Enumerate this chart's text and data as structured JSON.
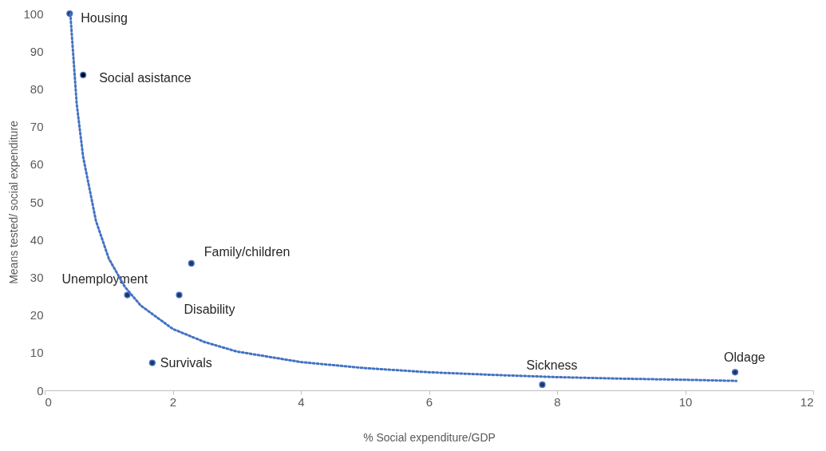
{
  "chart_data": {
    "type": "scatter",
    "xlabel": "% Social expenditure/GDP",
    "ylabel": "Means tested/ social expenditure",
    "xlim": [
      0,
      12
    ],
    "ylim": [
      0,
      100
    ],
    "xticks": [
      0,
      2,
      4,
      6,
      8,
      10,
      12
    ],
    "yticks": [
      0,
      10,
      20,
      30,
      40,
      50,
      60,
      70,
      80,
      90,
      100
    ],
    "grid": false,
    "marker": "circle",
    "series": [
      {
        "name": "Housing",
        "color": "#1f3864",
        "x": [
          0.39
        ],
        "values": [
          100
        ]
      },
      {
        "name": "Social asistance",
        "color": "#000000",
        "x": [
          0.6
        ],
        "values": [
          83.7
        ]
      },
      {
        "name": "Family/children",
        "color": "#1f3864",
        "x": [
          2.29
        ],
        "values": [
          33.7
        ]
      },
      {
        "name": "Unemployment",
        "color": "#1f3864",
        "x": [
          1.29
        ],
        "values": [
          25.3
        ]
      },
      {
        "name": "Disability",
        "color": "#1f3864",
        "x": [
          2.1
        ],
        "values": [
          25.3
        ]
      },
      {
        "name": "Survivals",
        "color": "#1f3864",
        "x": [
          1.68
        ],
        "values": [
          7.3
        ]
      },
      {
        "name": "Sickness",
        "color": "#1f3864",
        "x": [
          7.77
        ],
        "values": [
          1.5
        ]
      },
      {
        "name": "Oldage",
        "color": "#1f3864",
        "x": [
          10.78
        ],
        "values": [
          4.8
        ]
      },
      {
        "type": "line",
        "line_style": "dotted",
        "marker": "none",
        "color": "#4472c4",
        "x": [
          0.4,
          0.5,
          0.6,
          0.8,
          1.0,
          1.25,
          1.5,
          2,
          2.5,
          3,
          4,
          5,
          6,
          7,
          8,
          9,
          10,
          10.8
        ],
        "values": [
          100,
          76,
          62,
          45,
          35,
          27.5,
          22.5,
          16.3,
          12.8,
          10.3,
          7.5,
          5.9,
          4.8,
          4.1,
          3.5,
          3.1,
          2.8,
          2.5
        ]
      }
    ]
  }
}
